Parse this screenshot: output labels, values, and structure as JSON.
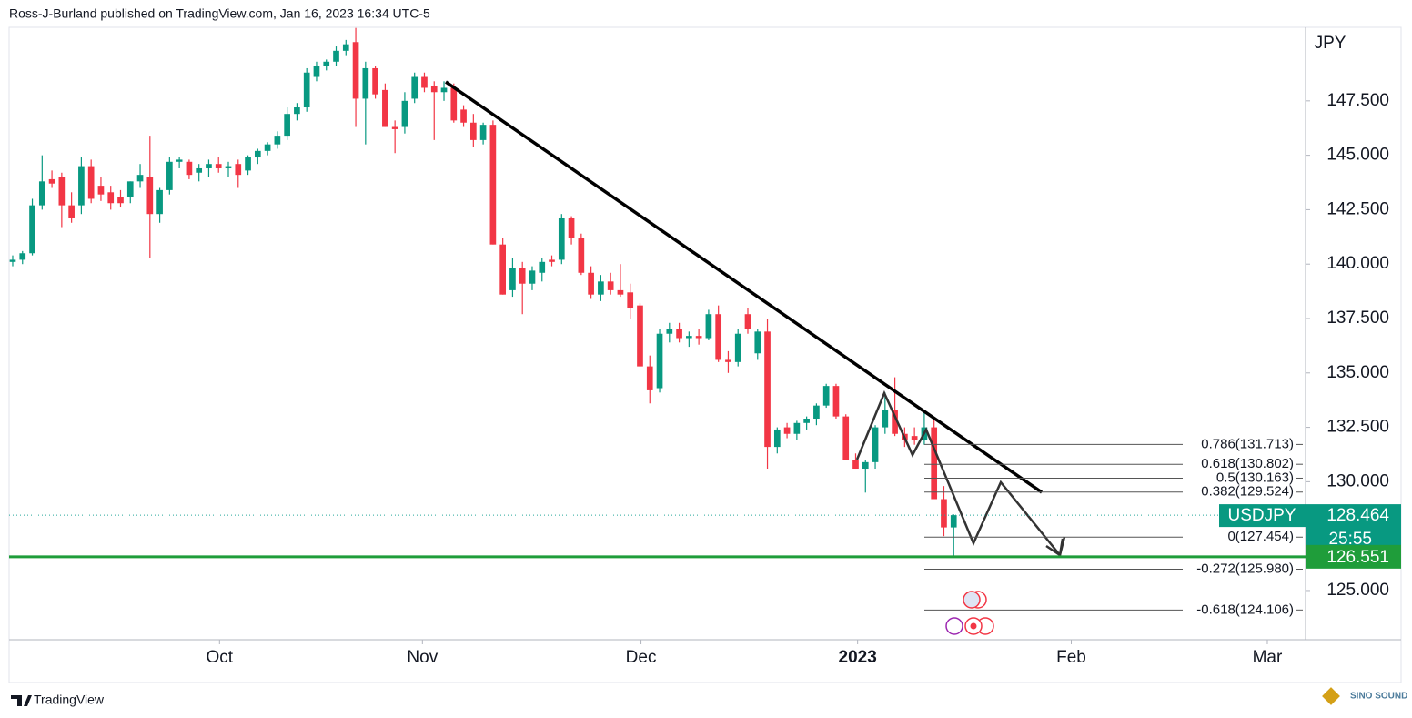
{
  "header": {
    "byline": "Ross-J-Burland published on TradingView.com, Jan 16, 2023 16:34 UTC-5",
    "logo": "TradingView",
    "watermark": "SINO SOUND"
  },
  "chart_data": {
    "type": "candlestick",
    "symbol": "USDJPY",
    "currency": "JPY",
    "up_color": "#089981",
    "down_color": "#f23645",
    "grid": false,
    "xlim": [
      -0.37,
      131.9
    ],
    "ylim": [
      122.74,
      150.88
    ],
    "xticks": [
      {
        "value": 21.1,
        "label": "Oct"
      },
      {
        "value": 41.8,
        "label": "Nov"
      },
      {
        "value": 64.1,
        "label": "Dec"
      },
      {
        "value": 86.2,
        "label": "2023"
      },
      {
        "value": 108.0,
        "label": "Feb"
      },
      {
        "value": 128.0,
        "label": "Mar"
      }
    ],
    "yticks": [
      {
        "value": 125,
        "label": "125.000"
      },
      {
        "value": 130,
        "label": "130.000"
      },
      {
        "value": 132.5,
        "label": "132.500"
      },
      {
        "value": 135,
        "label": "135.000"
      },
      {
        "value": 137.5,
        "label": "137.500"
      },
      {
        "value": 140,
        "label": "140.000"
      },
      {
        "value": 142.5,
        "label": "142.500"
      },
      {
        "value": 145,
        "label": "145.000"
      },
      {
        "value": 147.5,
        "label": "147.500"
      }
    ],
    "last_price": {
      "value": 128.464,
      "label": "128.464",
      "countdown": "25:55"
    },
    "support": {
      "value": 126.551,
      "label": "126.551",
      "color": "#1f9d3a"
    },
    "fib_levels": [
      {
        "value": 131.713,
        "label": "0.786(131.713)"
      },
      {
        "value": 130.802,
        "label": "0.618(130.802)"
      },
      {
        "value": 130.163,
        "label": "0.5(130.163)"
      },
      {
        "value": 129.524,
        "label": "0.382(129.524)"
      },
      {
        "value": 127.454,
        "label": "0(127.454)"
      },
      {
        "value": 125.98,
        "label": "-0.272(125.980)"
      },
      {
        "value": 124.106,
        "label": "-0.618(124.106)"
      }
    ],
    "candles": [
      {
        "open": 140.1,
        "high": 140.4,
        "low": 139.9,
        "close": 140.2
      },
      {
        "open": 140.2,
        "high": 140.6,
        "low": 140.0,
        "close": 140.5
      },
      {
        "open": 140.5,
        "high": 143.0,
        "low": 140.4,
        "close": 142.7
      },
      {
        "open": 142.7,
        "high": 145.0,
        "low": 142.5,
        "close": 143.8
      },
      {
        "open": 143.9,
        "high": 144.3,
        "low": 143.5,
        "close": 143.7
      },
      {
        "open": 144.0,
        "high": 144.2,
        "low": 141.7,
        "close": 142.7
      },
      {
        "open": 142.7,
        "high": 143.3,
        "low": 141.9,
        "close": 142.1
      },
      {
        "open": 142.7,
        "high": 144.9,
        "low": 142.3,
        "close": 144.5
      },
      {
        "open": 144.5,
        "high": 144.8,
        "low": 142.8,
        "close": 143.0
      },
      {
        "open": 143.6,
        "high": 144.0,
        "low": 142.9,
        "close": 143.2
      },
      {
        "open": 143.3,
        "high": 143.6,
        "low": 142.5,
        "close": 142.8
      },
      {
        "open": 143.1,
        "high": 143.4,
        "low": 142.6,
        "close": 142.8
      },
      {
        "open": 143.1,
        "high": 143.8,
        "low": 142.8,
        "close": 143.8
      },
      {
        "open": 143.8,
        "high": 144.6,
        "low": 143.5,
        "close": 144.1
      },
      {
        "open": 144.0,
        "high": 145.9,
        "low": 140.3,
        "close": 142.3
      },
      {
        "open": 142.3,
        "high": 143.5,
        "low": 141.9,
        "close": 143.4
      },
      {
        "open": 143.4,
        "high": 144.9,
        "low": 143.2,
        "close": 144.7
      },
      {
        "open": 144.7,
        "high": 144.9,
        "low": 144.4,
        "close": 144.8
      },
      {
        "open": 144.7,
        "high": 144.8,
        "low": 143.9,
        "close": 144.1
      },
      {
        "open": 144.2,
        "high": 144.6,
        "low": 143.8,
        "close": 144.4
      },
      {
        "open": 144.4,
        "high": 144.8,
        "low": 144.0,
        "close": 144.6
      },
      {
        "open": 144.6,
        "high": 144.9,
        "low": 144.2,
        "close": 144.4
      },
      {
        "open": 144.4,
        "high": 144.7,
        "low": 144.0,
        "close": 144.5
      },
      {
        "open": 144.6,
        "high": 144.8,
        "low": 143.5,
        "close": 144.1
      },
      {
        "open": 144.3,
        "high": 145.0,
        "low": 144.1,
        "close": 144.9
      },
      {
        "open": 144.9,
        "high": 145.3,
        "low": 144.6,
        "close": 145.2
      },
      {
        "open": 145.2,
        "high": 145.6,
        "low": 145.0,
        "close": 145.5
      },
      {
        "open": 145.5,
        "high": 146.1,
        "low": 145.3,
        "close": 145.9
      },
      {
        "open": 145.9,
        "high": 147.2,
        "low": 145.7,
        "close": 146.9
      },
      {
        "open": 146.9,
        "high": 147.4,
        "low": 146.6,
        "close": 147.2
      },
      {
        "open": 147.2,
        "high": 149.0,
        "low": 147.0,
        "close": 148.8
      },
      {
        "open": 148.6,
        "high": 149.3,
        "low": 148.4,
        "close": 149.1
      },
      {
        "open": 149.1,
        "high": 149.4,
        "low": 148.9,
        "close": 149.3
      },
      {
        "open": 149.3,
        "high": 150.0,
        "low": 149.1,
        "close": 149.8
      },
      {
        "open": 149.8,
        "high": 150.3,
        "low": 149.6,
        "close": 150.1
      },
      {
        "open": 150.2,
        "high": 150.85,
        "low": 146.3,
        "close": 147.6
      },
      {
        "open": 147.6,
        "high": 149.3,
        "low": 145.5,
        "close": 149.0
      },
      {
        "open": 149.0,
        "high": 149.1,
        "low": 147.6,
        "close": 147.8
      },
      {
        "open": 148.0,
        "high": 148.3,
        "low": 146.3,
        "close": 146.3
      },
      {
        "open": 146.3,
        "high": 146.6,
        "low": 145.1,
        "close": 146.2
      },
      {
        "open": 146.3,
        "high": 147.9,
        "low": 146.0,
        "close": 147.5
      },
      {
        "open": 147.6,
        "high": 148.8,
        "low": 147.4,
        "close": 148.6
      },
      {
        "open": 148.6,
        "high": 148.8,
        "low": 147.9,
        "close": 148.1
      },
      {
        "open": 148.2,
        "high": 148.4,
        "low": 145.7,
        "close": 147.9
      },
      {
        "open": 147.9,
        "high": 148.4,
        "low": 147.5,
        "close": 148.1
      },
      {
        "open": 148.1,
        "high": 148.3,
        "low": 146.5,
        "close": 146.6
      },
      {
        "open": 147.1,
        "high": 147.3,
        "low": 146.3,
        "close": 146.5
      },
      {
        "open": 146.5,
        "high": 146.9,
        "low": 145.4,
        "close": 145.7
      },
      {
        "open": 145.7,
        "high": 146.5,
        "low": 145.5,
        "close": 146.4
      },
      {
        "open": 146.4,
        "high": 146.6,
        "low": 140.9,
        "close": 140.9
      },
      {
        "open": 140.9,
        "high": 141.2,
        "low": 138.6,
        "close": 138.6
      },
      {
        "open": 138.8,
        "high": 140.3,
        "low": 138.5,
        "close": 139.8
      },
      {
        "open": 139.8,
        "high": 140.1,
        "low": 137.7,
        "close": 139.1
      },
      {
        "open": 139.1,
        "high": 139.9,
        "low": 138.8,
        "close": 139.7
      },
      {
        "open": 139.6,
        "high": 140.3,
        "low": 139.2,
        "close": 140.1
      },
      {
        "open": 140.2,
        "high": 140.4,
        "low": 139.9,
        "close": 140.1
      },
      {
        "open": 140.2,
        "high": 142.3,
        "low": 140.0,
        "close": 142.1
      },
      {
        "open": 142.1,
        "high": 142.2,
        "low": 140.9,
        "close": 141.2
      },
      {
        "open": 141.2,
        "high": 141.4,
        "low": 139.5,
        "close": 139.6
      },
      {
        "open": 139.6,
        "high": 139.9,
        "low": 138.4,
        "close": 138.6
      },
      {
        "open": 138.6,
        "high": 139.5,
        "low": 138.3,
        "close": 139.2
      },
      {
        "open": 139.2,
        "high": 139.6,
        "low": 138.6,
        "close": 138.8
      },
      {
        "open": 138.8,
        "high": 140.0,
        "low": 138.5,
        "close": 138.6
      },
      {
        "open": 138.7,
        "high": 139.1,
        "low": 137.5,
        "close": 138.0
      },
      {
        "open": 138.1,
        "high": 138.2,
        "low": 135.3,
        "close": 135.3
      },
      {
        "open": 135.3,
        "high": 135.8,
        "low": 133.6,
        "close": 134.2
      },
      {
        "open": 134.3,
        "high": 137.0,
        "low": 134.1,
        "close": 136.8
      },
      {
        "open": 136.8,
        "high": 137.3,
        "low": 136.4,
        "close": 137.0
      },
      {
        "open": 137.0,
        "high": 137.3,
        "low": 136.4,
        "close": 136.6
      },
      {
        "open": 136.6,
        "high": 136.9,
        "low": 136.2,
        "close": 136.7
      },
      {
        "open": 136.7,
        "high": 137.0,
        "low": 136.3,
        "close": 136.6
      },
      {
        "open": 136.6,
        "high": 137.9,
        "low": 136.5,
        "close": 137.7
      },
      {
        "open": 137.7,
        "high": 138.1,
        "low": 135.5,
        "close": 135.6
      },
      {
        "open": 135.6,
        "high": 136.0,
        "low": 135.0,
        "close": 135.5
      },
      {
        "open": 135.5,
        "high": 137.0,
        "low": 135.3,
        "close": 136.8
      },
      {
        "open": 137.7,
        "high": 138.0,
        "low": 136.8,
        "close": 137.0
      },
      {
        "open": 135.9,
        "high": 137.0,
        "low": 135.6,
        "close": 136.9
      },
      {
        "open": 136.9,
        "high": 137.5,
        "low": 130.6,
        "close": 131.6
      },
      {
        "open": 131.6,
        "high": 132.5,
        "low": 131.3,
        "close": 132.4
      },
      {
        "open": 132.5,
        "high": 132.7,
        "low": 132.0,
        "close": 132.2
      },
      {
        "open": 132.2,
        "high": 132.8,
        "low": 131.9,
        "close": 132.7
      },
      {
        "open": 132.7,
        "high": 133.0,
        "low": 132.4,
        "close": 132.9
      },
      {
        "open": 132.9,
        "high": 133.6,
        "low": 132.6,
        "close": 133.5
      },
      {
        "open": 133.5,
        "high": 134.5,
        "low": 133.4,
        "close": 134.4
      },
      {
        "open": 134.4,
        "high": 134.5,
        "low": 132.9,
        "close": 133.0
      },
      {
        "open": 133.0,
        "high": 133.1,
        "low": 131.0,
        "close": 131.0
      },
      {
        "open": 131.0,
        "high": 131.3,
        "low": 130.6,
        "close": 130.6
      },
      {
        "open": 130.6,
        "high": 131.0,
        "low": 129.5,
        "close": 130.9
      },
      {
        "open": 130.9,
        "high": 132.6,
        "low": 130.6,
        "close": 132.5
      },
      {
        "open": 132.5,
        "high": 134.1,
        "low": 132.2,
        "close": 133.3
      },
      {
        "open": 133.3,
        "high": 134.8,
        "low": 132.1,
        "close": 132.2
      },
      {
        "open": 132.2,
        "high": 132.5,
        "low": 131.6,
        "close": 131.9
      },
      {
        "open": 132.1,
        "high": 132.5,
        "low": 131.7,
        "close": 131.9
      },
      {
        "open": 131.9,
        "high": 133.2,
        "low": 131.7,
        "close": 132.5
      },
      {
        "open": 132.5,
        "high": 132.9,
        "low": 129.2,
        "close": 129.2
      },
      {
        "open": 129.2,
        "high": 129.8,
        "low": 127.5,
        "close": 127.9
      },
      {
        "open": 127.9,
        "high": 128.5,
        "low": 126.6,
        "close": 128.464
      }
    ]
  }
}
